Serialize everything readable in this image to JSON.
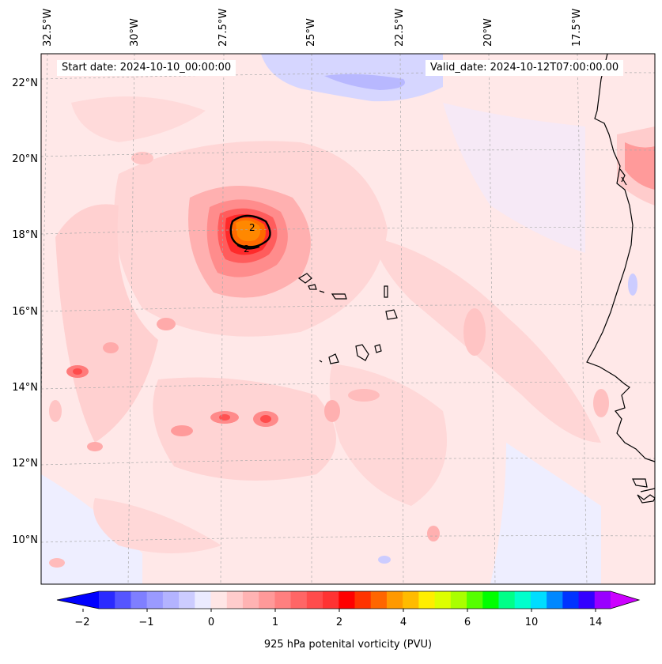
{
  "map": {
    "start_date": "Start date: 2024-10-10_00:00:00",
    "valid_date": "Valid_date: 2024-10-12T07:00:00.00",
    "contour_label": "2",
    "longitude_labels": [
      "32.5°W",
      "30°W",
      "27.5°W",
      "25°W",
      "22.5°W",
      "20°W",
      "17.5°W"
    ],
    "latitude_labels": [
      "22°N",
      "20°N",
      "18°N",
      "16°N",
      "14°N",
      "12°N",
      "10°N"
    ],
    "region": "Cape Verde islands and West African coast (Senegal / Mauritania)"
  },
  "colorbar": {
    "label": "925 hPa potenital vorticity (PVU)",
    "tick_labels": [
      "−2",
      "−1",
      "0",
      "1",
      "2",
      "4",
      "6",
      "10",
      "14"
    ],
    "colors": [
      "#0000ff",
      "#2a2aff",
      "#5555ff",
      "#7f7fff",
      "#9a9aff",
      "#b3b3ff",
      "#ccccff",
      "#ebebff",
      "#ffe6e6",
      "#ffcccc",
      "#ffb3b3",
      "#ff9999",
      "#ff7f7f",
      "#ff6666",
      "#ff4c4c",
      "#ff3333",
      "#ff0000",
      "#ff3300",
      "#ff6600",
      "#ff9900",
      "#ffbb00",
      "#ffee00",
      "#ddff00",
      "#aaff00",
      "#55ff00",
      "#00ff00",
      "#00ff88",
      "#00ffcc",
      "#00ddff",
      "#0088ff",
      "#0033ff",
      "#3300ff",
      "#9900ff",
      "#cc00ff"
    ]
  }
}
